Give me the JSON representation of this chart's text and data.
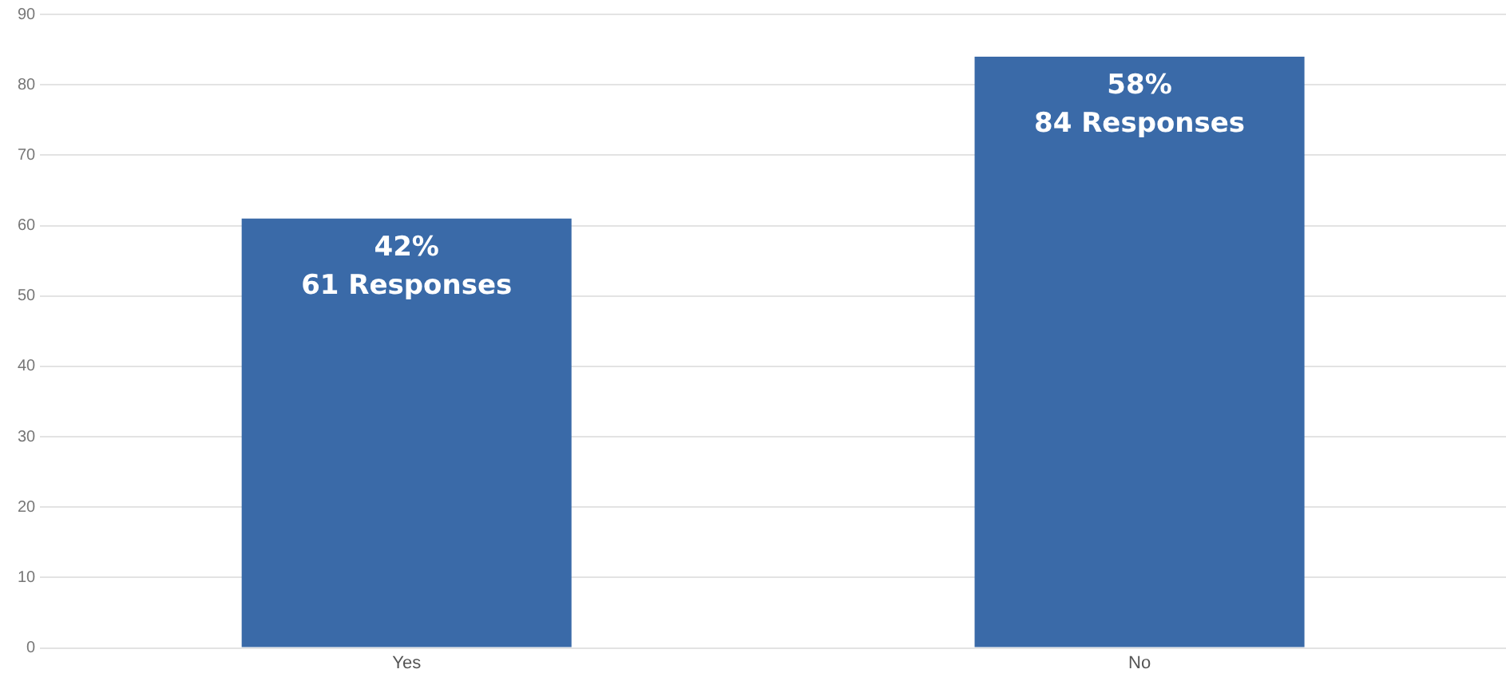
{
  "chart_data": {
    "type": "bar",
    "categories": [
      "Yes",
      "No"
    ],
    "values": [
      61,
      84
    ],
    "color": "#3a6aa8",
    "value_labels": [
      "42%\n61 Responses",
      "58%\n84 Responses"
    ],
    "ylim": [
      0,
      90
    ],
    "yticks": [
      0,
      10,
      20,
      30,
      40,
      50,
      60,
      70,
      80,
      90
    ],
    "grid": "y"
  }
}
